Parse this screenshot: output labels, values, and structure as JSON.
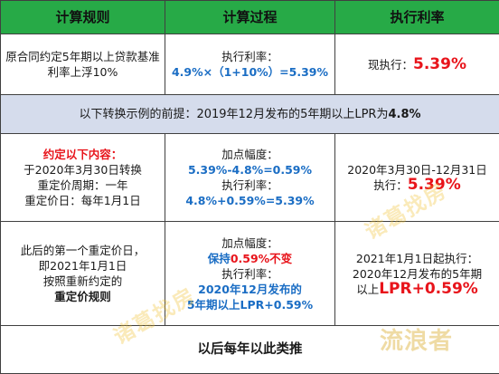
{
  "header": {
    "col1": "计算规则",
    "col2": "计算过程",
    "col3": "执行利率"
  },
  "row1": {
    "rule": "原合同约定5年期以上贷款基准利率上浮10%",
    "process_label": "执行利率：",
    "process_value": "4.9%×（1+10%）=5.39%",
    "rate_label": "现执行：",
    "rate_value": "5.39%"
  },
  "band": {
    "prefix": "以下转换示例的前提：2019年12月发布的5年期以上LPR为",
    "value": "4.8%"
  },
  "row2": {
    "rule_title": "约定以下内容：",
    "rule_line1": "于2020年3月30日转换",
    "rule_line2": "重定价周期：一年",
    "rule_line3": "重定价日：每年1月1日",
    "p_label1": "加点幅度：",
    "p_value1": "5.39%-4.8%=0.59%",
    "p_label2": "执行利率：",
    "p_value2": "4.8%+0.59%=5.39%",
    "rate_period": "2020年3月30日-12月31日",
    "rate_label": "执行：",
    "rate_value": "5.39%"
  },
  "row3": {
    "rule_line1": "此后的第一个重定价日，",
    "rule_line2": "即2021年1月1日",
    "rule_line3": "按照重新约定的",
    "rule_line4": "重定价规则",
    "p_label1": "加点幅度：",
    "p_keep": "保持",
    "p_keep_value": "0.59%不变",
    "p_label2": "执行利率：",
    "p_value2a": "2020年12月发布的",
    "p_value2b": "5年期以上LPR+0.59%",
    "rate_line1": "2021年1月1日起执行：",
    "rate_line2": "2020年12月发布的5年期",
    "rate_prefix": "以上",
    "rate_value": "LPR+0.59%"
  },
  "footer": {
    "text": "以后每年以此类推"
  },
  "watermarks": {
    "mark1": "诸葛找房",
    "mark2": "诸葛找房",
    "mark3": "流浪者"
  },
  "colors": {
    "header_bg": "#27aa47",
    "band_bg": "#d5dcec",
    "blue_text": "#1a6dc4",
    "red_text": "#e8141b"
  }
}
